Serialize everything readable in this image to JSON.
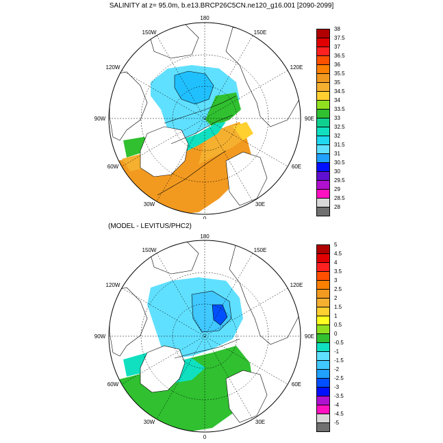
{
  "title": "SALINITY at z=  95.0m, b.e13.BRCP26C5CN.ne120_g16.001 [2090-2099]",
  "subtitle": "(MODEL - LEVITUS/PHC2)",
  "longitude_labels": {
    "top": "180",
    "bottom": "0",
    "w150": "150W",
    "w120": "120W",
    "w90": "90W",
    "w60": "60W",
    "w30": "30W",
    "e150": "150E",
    "e120": "120E",
    "e90": "90E",
    "e60": "60E",
    "e30": "30E"
  },
  "colorbar_top": {
    "labels": [
      "38",
      "37.5",
      "37",
      "36.5",
      "36",
      "35.5",
      "35",
      "34.5",
      "34",
      "33.5",
      "33",
      "32.5",
      "32",
      "31.5",
      "31",
      "30.5",
      "30",
      "29.5",
      "29",
      "28.5",
      "28"
    ],
    "colors": [
      "#b00000",
      "#e00000",
      "#ff2020",
      "#ff5000",
      "#ff8000",
      "#f29a20",
      "#f5b030",
      "#ffd030",
      "#90e020",
      "#30c030",
      "#10d090",
      "#10e0c0",
      "#20d8f0",
      "#60e0ff",
      "#20a0ff",
      "#0010ff",
      "#6010d0",
      "#b010d0",
      "#ff10c0",
      "#d8d8d8",
      "#707070"
    ]
  },
  "colorbar_bottom": {
    "labels": [
      "5",
      "4.5",
      "4",
      "3.5",
      "3",
      "2.5",
      "2",
      "1.5",
      "1",
      "0.5",
      "0",
      "-0.5",
      "-1",
      "-1.5",
      "-2",
      "-2.5",
      "-3",
      "-3.5",
      "-4",
      "-4.5",
      "-5"
    ],
    "colors": [
      "#b00000",
      "#e00000",
      "#ff2020",
      "#ff5000",
      "#ff8000",
      "#f29a20",
      "#f5b030",
      "#ffd030",
      "#ffff20",
      "#90e020",
      "#30c030",
      "#10e0c0",
      "#60e0ff",
      "#40c8ff",
      "#20a0ff",
      "#0050ff",
      "#0010ff",
      "#b010d0",
      "#ff10c0",
      "#d8d8d8",
      "#707070"
    ]
  }
}
